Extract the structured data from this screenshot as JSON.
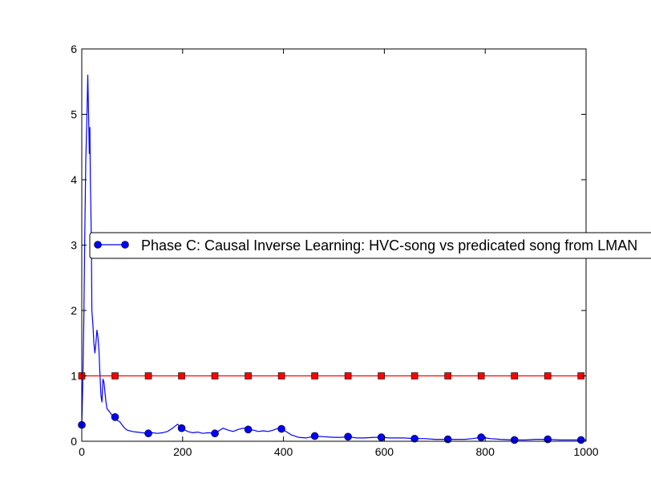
{
  "chart_data": {
    "type": "line",
    "title": "",
    "xlabel": "",
    "ylabel": "",
    "xlim": [
      0,
      1000
    ],
    "ylim": [
      0,
      6
    ],
    "xticks": [
      0,
      200,
      400,
      600,
      800,
      1000
    ],
    "yticks": [
      0,
      1,
      2,
      3,
      4,
      5,
      6
    ],
    "grid": false,
    "legend_placement": "center-left",
    "series": [
      {
        "name": "Phase C: Causal Inverse Learning: HVC-song vs predicated song from LMAN",
        "color": "#0000ff",
        "marker": "circle",
        "x": [
          0,
          2,
          4,
          6,
          8,
          10,
          12,
          14,
          15,
          16,
          17,
          18,
          19,
          20,
          22,
          24,
          26,
          28,
          30,
          32,
          34,
          36,
          38,
          40,
          42,
          44,
          46,
          48,
          50,
          55,
          60,
          65,
          66,
          70,
          75,
          80,
          85,
          90,
          100,
          110,
          120,
          132,
          140,
          150,
          160,
          170,
          180,
          190,
          198,
          205,
          210,
          220,
          230,
          240,
          250,
          264,
          270,
          280,
          290,
          300,
          310,
          320,
          330,
          340,
          350,
          360,
          370,
          380,
          390,
          396,
          405,
          415,
          430,
          445,
          462,
          480,
          500,
          515,
          528,
          545,
          560,
          580,
          594,
          610,
          625,
          640,
          660,
          680,
          700,
          726,
          745,
          760,
          775,
          792,
          800,
          810,
          830,
          858,
          880,
          900,
          924,
          950,
          970,
          990,
          1000
        ],
        "y": [
          0.25,
          0.9,
          1.8,
          3.2,
          4.3,
          4.9,
          5.6,
          4.8,
          4.4,
          4.8,
          4.0,
          3.6,
          3.0,
          2.0,
          1.8,
          1.5,
          1.35,
          1.5,
          1.7,
          1.6,
          1.4,
          1.05,
          0.7,
          0.6,
          0.95,
          0.9,
          0.75,
          0.6,
          0.5,
          0.45,
          0.4,
          0.37,
          0.37,
          0.32,
          0.3,
          0.25,
          0.2,
          0.17,
          0.15,
          0.14,
          0.13,
          0.12,
          0.13,
          0.12,
          0.13,
          0.15,
          0.2,
          0.26,
          0.2,
          0.17,
          0.15,
          0.13,
          0.14,
          0.12,
          0.13,
          0.12,
          0.15,
          0.2,
          0.17,
          0.15,
          0.18,
          0.2,
          0.18,
          0.17,
          0.15,
          0.16,
          0.15,
          0.17,
          0.2,
          0.19,
          0.15,
          0.1,
          0.06,
          0.05,
          0.08,
          0.07,
          0.06,
          0.06,
          0.07,
          0.05,
          0.05,
          0.06,
          0.06,
          0.05,
          0.05,
          0.05,
          0.04,
          0.04,
          0.03,
          0.03,
          0.03,
          0.03,
          0.04,
          0.06,
          0.05,
          0.04,
          0.03,
          0.02,
          0.02,
          0.03,
          0.03,
          0.02,
          0.02,
          0.02,
          0.02
        ],
        "marker_x": [
          0,
          66,
          132,
          198,
          264,
          330,
          396,
          462,
          528,
          594,
          660,
          726,
          792,
          858,
          924,
          990
        ],
        "marker_y": [
          0.25,
          0.37,
          0.12,
          0.2,
          0.12,
          0.18,
          0.19,
          0.08,
          0.07,
          0.06,
          0.04,
          0.03,
          0.06,
          0.02,
          0.03,
          0.02
        ]
      },
      {
        "name": "",
        "color": "#ff0000",
        "marker": "square",
        "x": [
          0,
          1000
        ],
        "y": [
          1,
          1
        ],
        "marker_x": [
          0,
          66,
          132,
          198,
          264,
          330,
          396,
          462,
          528,
          594,
          660,
          726,
          792,
          858,
          924,
          990
        ],
        "marker_y": [
          1,
          1,
          1,
          1,
          1,
          1,
          1,
          1,
          1,
          1,
          1,
          1,
          1,
          1,
          1,
          1
        ]
      }
    ]
  }
}
